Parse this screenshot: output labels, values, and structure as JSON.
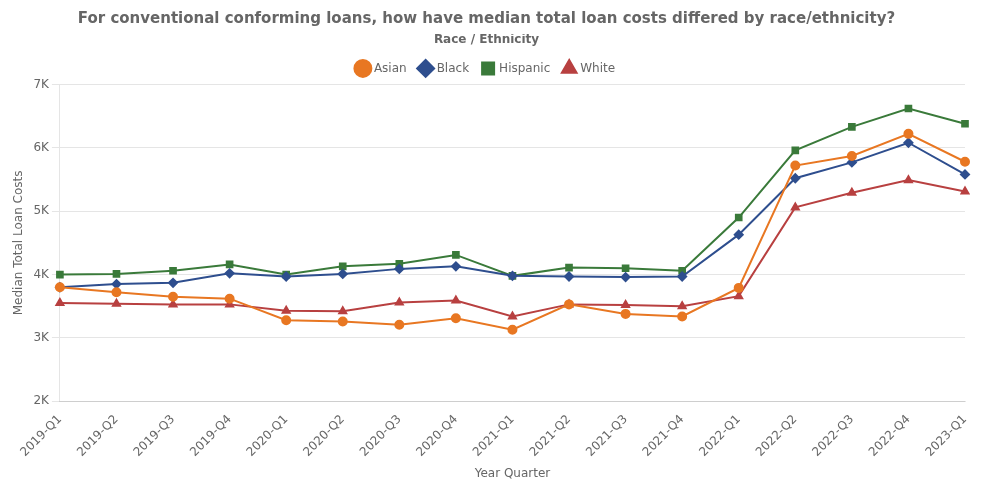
{
  "chart_data": {
    "type": "line",
    "title": "For conventional conforming loans, how have median total loan costs differed by race/ethnicity?",
    "x_label": "Year Quarter",
    "y_label": "Median Total Loan Costs",
    "legend_title": "Race / Ethnicity",
    "categories": [
      "2019-Q1",
      "2019-Q2",
      "2019-Q3",
      "2019-Q4",
      "2020-Q1",
      "2020-Q2",
      "2020-Q3",
      "2020-Q4",
      "2021-Q1",
      "2021-Q2",
      "2021-Q3",
      "2021-Q4",
      "2022-Q1",
      "2022-Q2",
      "2022-Q3",
      "2022-Q4",
      "2023-Q1"
    ],
    "series": [
      {
        "name": "Asian",
        "color": "#e87722",
        "marker": "circle",
        "values": [
          3800,
          3720,
          3650,
          3620,
          3280,
          3260,
          3210,
          3310,
          3130,
          3530,
          3380,
          3340,
          3790,
          5720,
          5870,
          6220,
          5780
        ]
      },
      {
        "name": "Black",
        "color": "#2e4e8e",
        "marker": "diamond",
        "values": [
          3800,
          3850,
          3870,
          4020,
          3970,
          4010,
          4090,
          4130,
          3980,
          3970,
          3960,
          3970,
          4630,
          5520,
          5770,
          6080,
          5580
        ]
      },
      {
        "name": "Hispanic",
        "color": "#3a7a3a",
        "marker": "square",
        "values": [
          4000,
          4010,
          4060,
          4160,
          4000,
          4130,
          4170,
          4310,
          3980,
          4110,
          4100,
          4060,
          4900,
          5960,
          6330,
          6620,
          6380
        ]
      },
      {
        "name": "White",
        "color": "#b84040",
        "marker": "triangle",
        "values": [
          3550,
          3540,
          3530,
          3530,
          3430,
          3420,
          3560,
          3590,
          3340,
          3530,
          3520,
          3500,
          3660,
          5060,
          5290,
          5490,
          5310
        ]
      }
    ],
    "ylim": [
      2000,
      7000
    ],
    "yticks": [
      {
        "value": 2000,
        "label": "2K"
      },
      {
        "value": 3000,
        "label": "3K"
      },
      {
        "value": 4000,
        "label": "4K"
      },
      {
        "value": 5000,
        "label": "5K"
      },
      {
        "value": 6000,
        "label": "6K"
      },
      {
        "value": 7000,
        "label": "7K"
      }
    ],
    "grid": "y",
    "legend": "top"
  }
}
